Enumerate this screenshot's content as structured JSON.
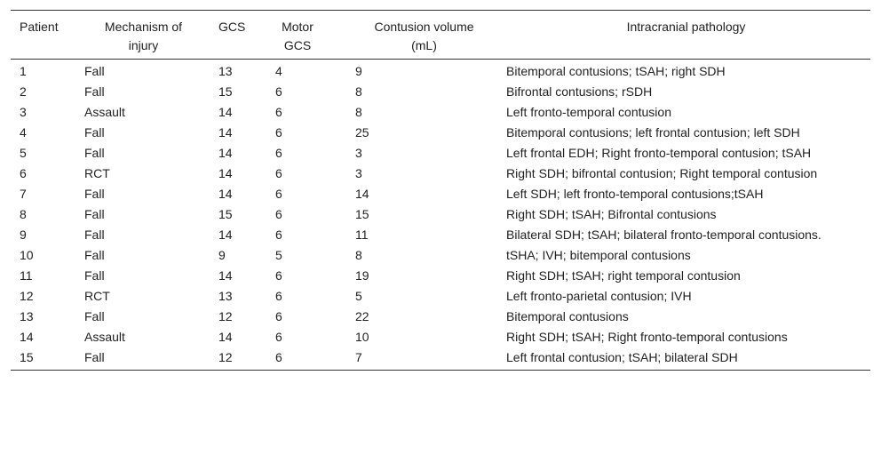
{
  "table": {
    "headers": [
      "Patient",
      "Mechanism of injury",
      "GCS",
      "Motor GCS",
      "Contusion volume (mL)",
      "Intracranial pathology"
    ],
    "rows": [
      [
        1,
        "Fall",
        13,
        4,
        9,
        "Bitemporal contusions; tSAH; right SDH"
      ],
      [
        2,
        "Fall",
        15,
        6,
        8,
        "Bifrontal contusions; rSDH"
      ],
      [
        3,
        "Assault",
        14,
        6,
        8,
        "Left fronto-temporal contusion"
      ],
      [
        4,
        "Fall",
        14,
        6,
        25,
        "Bitemporal contusions; left frontal contusion; left SDH"
      ],
      [
        5,
        "Fall",
        14,
        6,
        3,
        "Left frontal EDH; Right fronto-temporal contusion; tSAH"
      ],
      [
        6,
        "RCT",
        14,
        6,
        3,
        "Right SDH; bifrontal contusion; Right temporal contusion"
      ],
      [
        7,
        "Fall",
        14,
        6,
        14,
        "Left SDH; left fronto-temporal contusions;tSAH"
      ],
      [
        8,
        "Fall",
        15,
        6,
        15,
        "Right SDH; tSAH; Bifrontal contusions"
      ],
      [
        9,
        "Fall",
        14,
        6,
        11,
        "Bilateral SDH; tSAH; bilateral fronto-temporal contusions."
      ],
      [
        10,
        "Fall",
        9,
        5,
        8,
        "tSHA; IVH; bitemporal contusions"
      ],
      [
        11,
        "Fall",
        14,
        6,
        19,
        "Right SDH; tSAH; right temporal contusion"
      ],
      [
        12,
        "RCT",
        13,
        6,
        5,
        "Left fronto-parietal contusion; IVH"
      ],
      [
        13,
        "Fall",
        12,
        6,
        22,
        "Bitemporal contusions"
      ],
      [
        14,
        "Assault",
        14,
        6,
        10,
        "Right SDH; tSAH; Right fronto-temporal contusions"
      ],
      [
        15,
        "Fall",
        12,
        6,
        7,
        "Left frontal contusion; tSAH; bilateral SDH"
      ]
    ]
  }
}
